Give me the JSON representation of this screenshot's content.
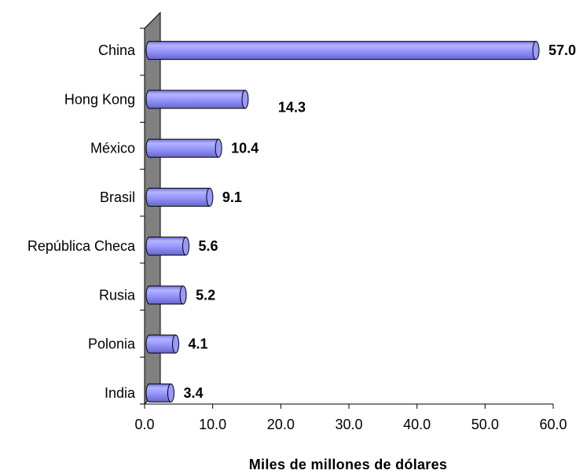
{
  "chart_data": {
    "type": "bar",
    "orientation": "horizontal",
    "categories": [
      "China",
      "Hong Kong",
      "México",
      "Brasil",
      "República Checa",
      "Rusia",
      "Polonia",
      "India"
    ],
    "values": [
      57.0,
      14.3,
      10.4,
      9.1,
      5.6,
      5.2,
      4.1,
      3.4
    ],
    "value_labels": [
      "57.0",
      "14.3",
      "10.4",
      "9.1",
      "5.6",
      "5.2",
      "4.1",
      "3.4"
    ],
    "xlabel": "Miles de millones de dólares",
    "ylabel": "",
    "xlim": [
      0,
      60
    ],
    "xticks": [
      0,
      10,
      20,
      30,
      40,
      50,
      60
    ],
    "xtick_labels": [
      "0.0",
      "10.0",
      "20.0",
      "30.0",
      "40.0",
      "50.0",
      "60.0"
    ],
    "grid": false,
    "legend": "none",
    "style": "3d-cylinder",
    "colors": {
      "bar_fill": "#9999ff",
      "bar_outline": "#000000",
      "wall": "#808080",
      "background": "#ffffff"
    }
  }
}
